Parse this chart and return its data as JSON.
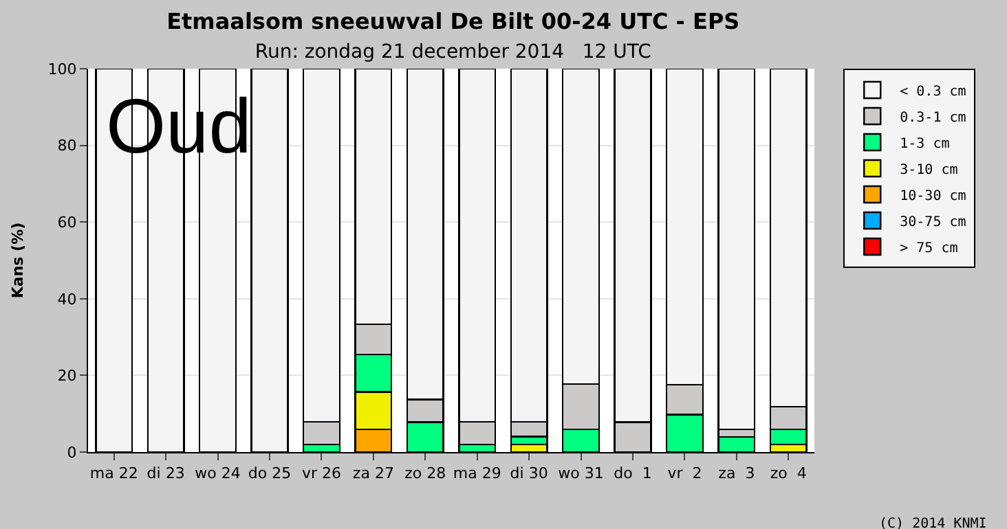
{
  "chart_data": {
    "type": "bar",
    "stacked": true,
    "title": "Etmaalsom sneeuwval De Bilt 00-24 UTC - EPS",
    "subtitle": "Run: zondag 21 december 2014   12 UTC",
    "ylabel": "Kans (%)",
    "categories": [
      "ma 22",
      "di 23",
      "wo 24",
      "do 25",
      "vr 26",
      "za 27",
      "zo 28",
      "ma 29",
      "di 30",
      "wo 31",
      "do  1",
      "vr  2",
      "za  3",
      "zo  4"
    ],
    "series": [
      {
        "name": "> 75 cm",
        "color": "#ff0000",
        "values": [
          0,
          0,
          0,
          0,
          0,
          0,
          0,
          0,
          0,
          0,
          0,
          0,
          0,
          0
        ]
      },
      {
        "name": "30-75 cm",
        "color": "#00aaff",
        "values": [
          0,
          0,
          0,
          0,
          0,
          0,
          0,
          0,
          0,
          0,
          0,
          0,
          0,
          0
        ]
      },
      {
        "name": "10-30 cm",
        "color": "#ffa500",
        "values": [
          0,
          0,
          0,
          0,
          0,
          5.9,
          0,
          0,
          0,
          0,
          0,
          0,
          0,
          0
        ]
      },
      {
        "name": "3-10 cm",
        "color": "#f0f000",
        "values": [
          0,
          0,
          0,
          0,
          0,
          9.8,
          0,
          0,
          2,
          0,
          0,
          0,
          0,
          2
        ]
      },
      {
        "name": "1-3 cm",
        "color": "#00ff80",
        "values": [
          0,
          0,
          0,
          0,
          2,
          9.8,
          7.8,
          2,
          2,
          5.9,
          0,
          9.8,
          3.9,
          3.9
        ]
      },
      {
        "name": "0.3-1 cm",
        "color": "#cccac8",
        "values": [
          0,
          0,
          0,
          0,
          5.9,
          7.8,
          5.9,
          5.9,
          3.9,
          11.8,
          7.8,
          7.8,
          2,
          5.9
        ]
      },
      {
        "name": "< 0.3 cm",
        "color": "#f4f4f4",
        "values": [
          100,
          100,
          100,
          100,
          92.1,
          66.7,
          86.3,
          92.1,
          92.1,
          82.3,
          92.2,
          82.4,
          94.1,
          88.2
        ]
      }
    ],
    "ylim": [
      0,
      100
    ],
    "yticks": [
      0,
      20,
      40,
      60,
      80,
      100
    ],
    "grid": "y",
    "legend": "top right",
    "annotations": [
      "Oud",
      "(C) 2014 KNMI"
    ]
  }
}
